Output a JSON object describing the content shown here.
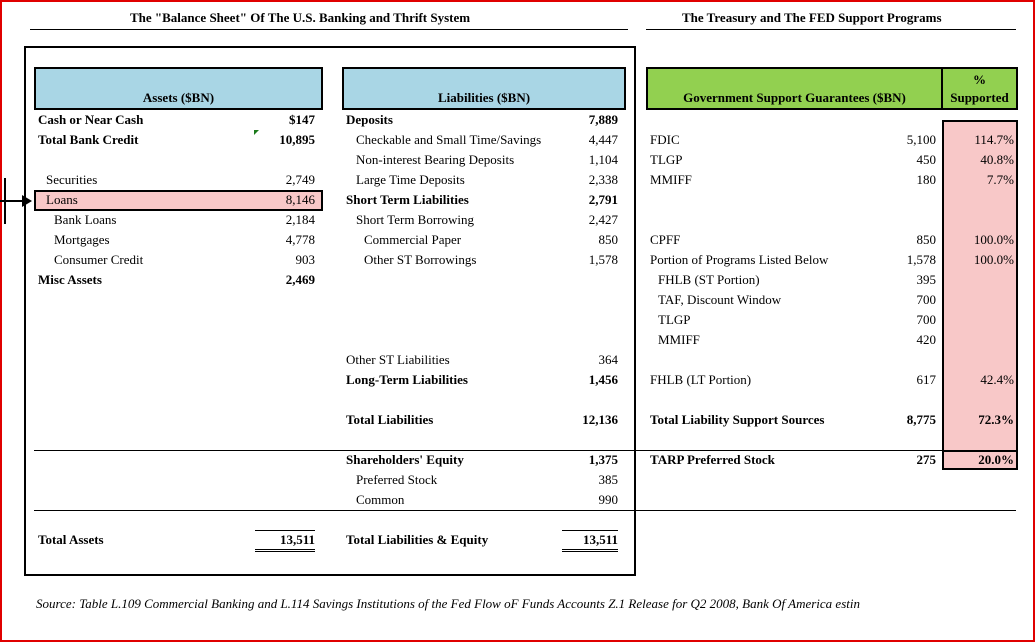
{
  "titles": {
    "balance_sheet": "The \"Balance Sheet\" Of The U.S. Banking and Thrift System",
    "support": "The Treasury and The FED Support Programs"
  },
  "headers": {
    "assets": "Assets ($BN)",
    "liabilities": "Liabilities ($BN)",
    "gov": "Government Support Guarantees ($BN)",
    "pct_line1": "%",
    "pct_line2": "Supported"
  },
  "assets": {
    "cash_label": "Cash or Near Cash",
    "cash_value": "$147",
    "credit_label": "Total Bank Credit",
    "credit_value": "10,895",
    "securities_label": "Securities",
    "securities_value": "2,749",
    "loans_label": "Loans",
    "loans_value": "8,146",
    "bank_loans_label": "Bank Loans",
    "bank_loans_value": "2,184",
    "mortgages_label": "Mortgages",
    "mortgages_value": "4,778",
    "consumer_label": "Consumer Credit",
    "consumer_value": "903",
    "misc_label": "Misc Assets",
    "misc_value": "2,469",
    "total_label": "Total Assets",
    "total_value": "13,511"
  },
  "liabilities": {
    "deposits_label": "Deposits",
    "deposits_value": "7,889",
    "checkable_label": "Checkable and Small Time/Savings",
    "checkable_value": "4,447",
    "noninterest_label": "Non-interest Bearing Deposits",
    "noninterest_value": "1,104",
    "large_time_label": "Large Time Deposits",
    "large_time_value": "2,338",
    "st_label": "Short Term Liabilities",
    "st_value": "2,791",
    "st_borrow_label": "Short Term Borrowing",
    "st_borrow_value": "2,427",
    "cp_label": "Commercial Paper",
    "cp_value": "850",
    "other_stb_label": "Other ST Borrowings",
    "other_stb_value": "1,578",
    "other_stl_label": "Other ST Liabilities",
    "other_stl_value": "364",
    "lt_label": "Long-Term Liabilities",
    "lt_value": "1,456",
    "total_label": "Total Liabilities",
    "total_value": "12,136",
    "equity_label": "Shareholders' Equity",
    "equity_value": "1,375",
    "preferred_label": "Preferred Stock",
    "preferred_value": "385",
    "common_label": "Common",
    "common_value": "990",
    "tle_label": "Total Liabilities & Equity",
    "tle_value": "13,511"
  },
  "support": {
    "fdic_label": "FDIC",
    "fdic_value": "5,100",
    "fdic_pct": "114.7%",
    "tlgp_label": "TLGP",
    "tlgp_value": "450",
    "tlgp_pct": "40.8%",
    "mmiff_label": "MMIFF",
    "mmiff_value": "180",
    "mmiff_pct": "7.7%",
    "cpff_label": "CPFF",
    "cpff_value": "850",
    "cpff_pct": "100.0%",
    "portion_label": "Portion of Programs Listed Below",
    "portion_value": "1,578",
    "portion_pct": "100.0%",
    "fhlb_st_label": "FHLB (ST Portion)",
    "fhlb_st_value": "395",
    "taf_label": "TAF, Discount Window",
    "taf_value": "700",
    "tlgp2_label": "TLGP",
    "tlgp2_value": "700",
    "mmiff2_label": "MMIFF",
    "mmiff2_value": "420",
    "fhlb_lt_label": "FHLB (LT Portion)",
    "fhlb_lt_value": "617",
    "fhlb_lt_pct": "42.4%",
    "total_label": "Total Liability Support Sources",
    "total_value": "8,775",
    "total_pct": "72.3%",
    "tarp_label": "TARP Preferred Stock",
    "tarp_value": "275",
    "tarp_pct": "20.0%"
  },
  "source": "Source: Table L.109 Commercial Banking and L.114 Savings Institutions of the Fed Flow oF Funds Accounts Z.1 Release for Q2 2008, Bank Of America estin",
  "colors": {
    "border": "#e00000",
    "assets_header": "#a9d6e5",
    "gov_header": "#92d050",
    "highlight": "#f8c8c8"
  }
}
